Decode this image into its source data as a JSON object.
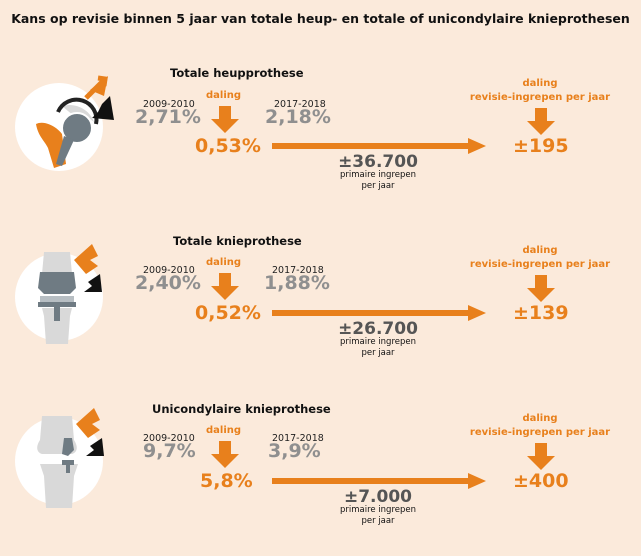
{
  "title": "Kans op revisie binnen 5 jaar van totale heup- en totale of unicondylaire knieprothesen",
  "colors": {
    "background": "#fbeadb",
    "orange": "#e8801c",
    "grey": "#8f8f8f",
    "implant": "#6f7b83"
  },
  "panels": [
    {
      "name": "Totale heupprothese",
      "year_a": "2009-2010",
      "value_a": "2,71%",
      "year_b": "2017-2018",
      "value_b": "2,18%",
      "daling_label": "daling",
      "daling_value": "0,53%",
      "primary_count": "±36.700",
      "primary_label_1": "primaire ingrepen",
      "primary_label_2": "per jaar",
      "revision_label_1": "daling",
      "revision_label_2": "revisie-ingrepen per jaar",
      "revision_value": "±195",
      "icon": "hip-prosthesis-icon"
    },
    {
      "name": "Totale knieprothese",
      "year_a": "2009-2010",
      "value_a": "2,40%",
      "year_b": "2017-2018",
      "value_b": "1,88%",
      "daling_label": "daling",
      "daling_value": "0,52%",
      "primary_count": "±26.700",
      "primary_label_1": "primaire ingrepen",
      "primary_label_2": "per jaar",
      "revision_label_1": "daling",
      "revision_label_2": "revisie-ingrepen per jaar",
      "revision_value": "±139",
      "icon": "knee-prosthesis-icon"
    },
    {
      "name": "Unicondylaire knieprothese",
      "year_a": "2009-2010",
      "value_a": "9,7%",
      "year_b": "2017-2018",
      "value_b": "3,9%",
      "daling_label": "daling",
      "daling_value": "5,8%",
      "primary_count": "±7.000",
      "primary_label_1": "primaire ingrepen",
      "primary_label_2": "per jaar",
      "revision_label_1": "daling",
      "revision_label_2": "revisie-ingrepen per jaar",
      "revision_value": "±400",
      "icon": "unicondylar-knee-prosthesis-icon"
    }
  ]
}
